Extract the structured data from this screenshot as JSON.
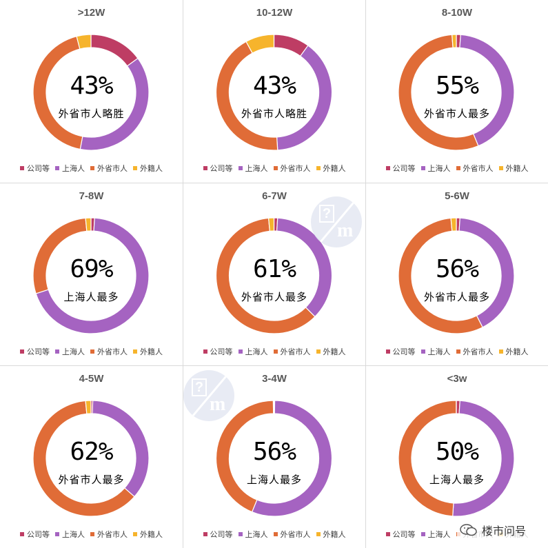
{
  "colors": {
    "company": "#be3d64",
    "shanghai": "#a563c1",
    "out_of_province": "#e06c37",
    "foreign": "#f6b42c"
  },
  "legend": {
    "company": "公司等",
    "shanghai": "上海人",
    "out_of_province": "外省市人",
    "foreign": "外籍人"
  },
  "chart_data": [
    {
      "type": "pie",
      "title": ">12W",
      "center_value": "43%",
      "center_label": "外省市人略胜",
      "slices": [
        {
          "name": "公司等",
          "value": 15
        },
        {
          "name": "上海人",
          "value": 38
        },
        {
          "name": "外省市人",
          "value": 43
        },
        {
          "name": "外籍人",
          "value": 4
        }
      ]
    },
    {
      "type": "pie",
      "title": "10-12W",
      "center_value": "43%",
      "center_label": "外省市人略胜",
      "slices": [
        {
          "name": "公司等",
          "value": 10
        },
        {
          "name": "上海人",
          "value": 39
        },
        {
          "name": "外省市人",
          "value": 43
        },
        {
          "name": "外籍人",
          "value": 8
        }
      ]
    },
    {
      "type": "pie",
      "title": "8-10W",
      "center_value": "55%",
      "center_label": "外省市人最多",
      "slices": [
        {
          "name": "公司等",
          "value": 1.2
        },
        {
          "name": "上海人",
          "value": 42.6
        },
        {
          "name": "外省市人",
          "value": 55
        },
        {
          "name": "外籍人",
          "value": 1.2
        }
      ]
    },
    {
      "type": "pie",
      "title": "7-8W",
      "center_value": "69%",
      "center_label": "上海人最多",
      "slices": [
        {
          "name": "公司等",
          "value": 1
        },
        {
          "name": "上海人",
          "value": 69
        },
        {
          "name": "外省市人",
          "value": 28.5
        },
        {
          "name": "外籍人",
          "value": 1.5
        }
      ]
    },
    {
      "type": "pie",
      "title": "6-7W",
      "center_value": "61%",
      "center_label": "外省市人最多",
      "slices": [
        {
          "name": "公司等",
          "value": 1
        },
        {
          "name": "上海人",
          "value": 36.5
        },
        {
          "name": "外省市人",
          "value": 61
        },
        {
          "name": "外籍人",
          "value": 1.5
        }
      ]
    },
    {
      "type": "pie",
      "title": "5-6W",
      "center_value": "56%",
      "center_label": "外省市人最多",
      "slices": [
        {
          "name": "公司等",
          "value": 1
        },
        {
          "name": "上海人",
          "value": 41.5
        },
        {
          "name": "外省市人",
          "value": 56
        },
        {
          "name": "外籍人",
          "value": 1.5
        }
      ]
    },
    {
      "type": "pie",
      "title": "4-5W",
      "center_value": "62%",
      "center_label": "外省市人最多",
      "slices": [
        {
          "name": "公司等",
          "value": 0.5
        },
        {
          "name": "上海人",
          "value": 36
        },
        {
          "name": "外省市人",
          "value": 62
        },
        {
          "name": "外籍人",
          "value": 1.5
        }
      ]
    },
    {
      "type": "pie",
      "title": "3-4W",
      "center_value": "56%",
      "center_label": "上海人最多",
      "slices": [
        {
          "name": "公司等",
          "value": 0.2
        },
        {
          "name": "上海人",
          "value": 56
        },
        {
          "name": "外省市人",
          "value": 43.6
        },
        {
          "name": "外籍人",
          "value": 0.2
        }
      ]
    },
    {
      "type": "pie",
      "title": "<3w",
      "center_value": "50%",
      "center_label": "上海人最多",
      "slices": [
        {
          "name": "公司等",
          "value": 1
        },
        {
          "name": "上海人",
          "value": 50
        },
        {
          "name": "外省市人",
          "value": 49
        },
        {
          "name": "外籍人",
          "value": 0.01
        }
      ]
    }
  ],
  "footer": {
    "brand": "楼市问号"
  }
}
